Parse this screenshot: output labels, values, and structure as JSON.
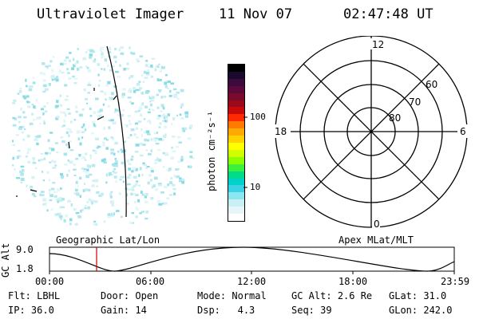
{
  "header": {
    "instrument": "Ultraviolet Imager",
    "date": "11 Nov 07",
    "time": "02:47:48 UT"
  },
  "colorbar": {
    "label": "photon cm⁻²s⁻¹",
    "ticks": [
      "100",
      "10"
    ],
    "colors": [
      "#000000",
      "#1a0a2e",
      "#3c0a3c",
      "#5a0a3a",
      "#7a0a2a",
      "#9a0a1a",
      "#c80a0a",
      "#ff2a00",
      "#ff7a00",
      "#ffaa00",
      "#ffd200",
      "#ffff00",
      "#d2ff00",
      "#8cff00",
      "#3cf03c",
      "#00dc8c",
      "#00d2c8",
      "#3cd2e6",
      "#8ce6f0",
      "#c8f0f5",
      "#e6f5f8",
      "#ffffff"
    ]
  },
  "polar": {
    "mlt_labels": {
      "top": "12",
      "left": "18",
      "right": "6",
      "bottom": "0"
    },
    "lat_labels": [
      "60",
      "70",
      "80"
    ]
  },
  "timeline": {
    "ylabel": "GC Alt",
    "yticks": [
      "9.0",
      "1.8"
    ],
    "left_title": "Geographic Lat/Lon",
    "right_title": "Apex MLat/MLT",
    "xticks": [
      "00:00",
      "06:00",
      "12:00",
      "18:00",
      "23:59"
    ],
    "marker_time": "02:47:48"
  },
  "footer": {
    "row1": [
      {
        "label": "Flt:",
        "value": "LBHL"
      },
      {
        "label": "Door:",
        "value": "Open"
      },
      {
        "label": "Mode:",
        "value": "Normal"
      },
      {
        "label": "GC Alt:",
        "value": "2.6 Re"
      },
      {
        "label": "GLat:",
        "value": "31.0"
      }
    ],
    "row2": [
      {
        "label": "IP:",
        "value": "36.0"
      },
      {
        "label": "Gain:",
        "value": "14"
      },
      {
        "label": "Dsp:",
        "value": "4.3"
      },
      {
        "label": "Seq:",
        "value": "39"
      },
      {
        "label": "GLon:",
        "value": "242.0"
      }
    ]
  }
}
